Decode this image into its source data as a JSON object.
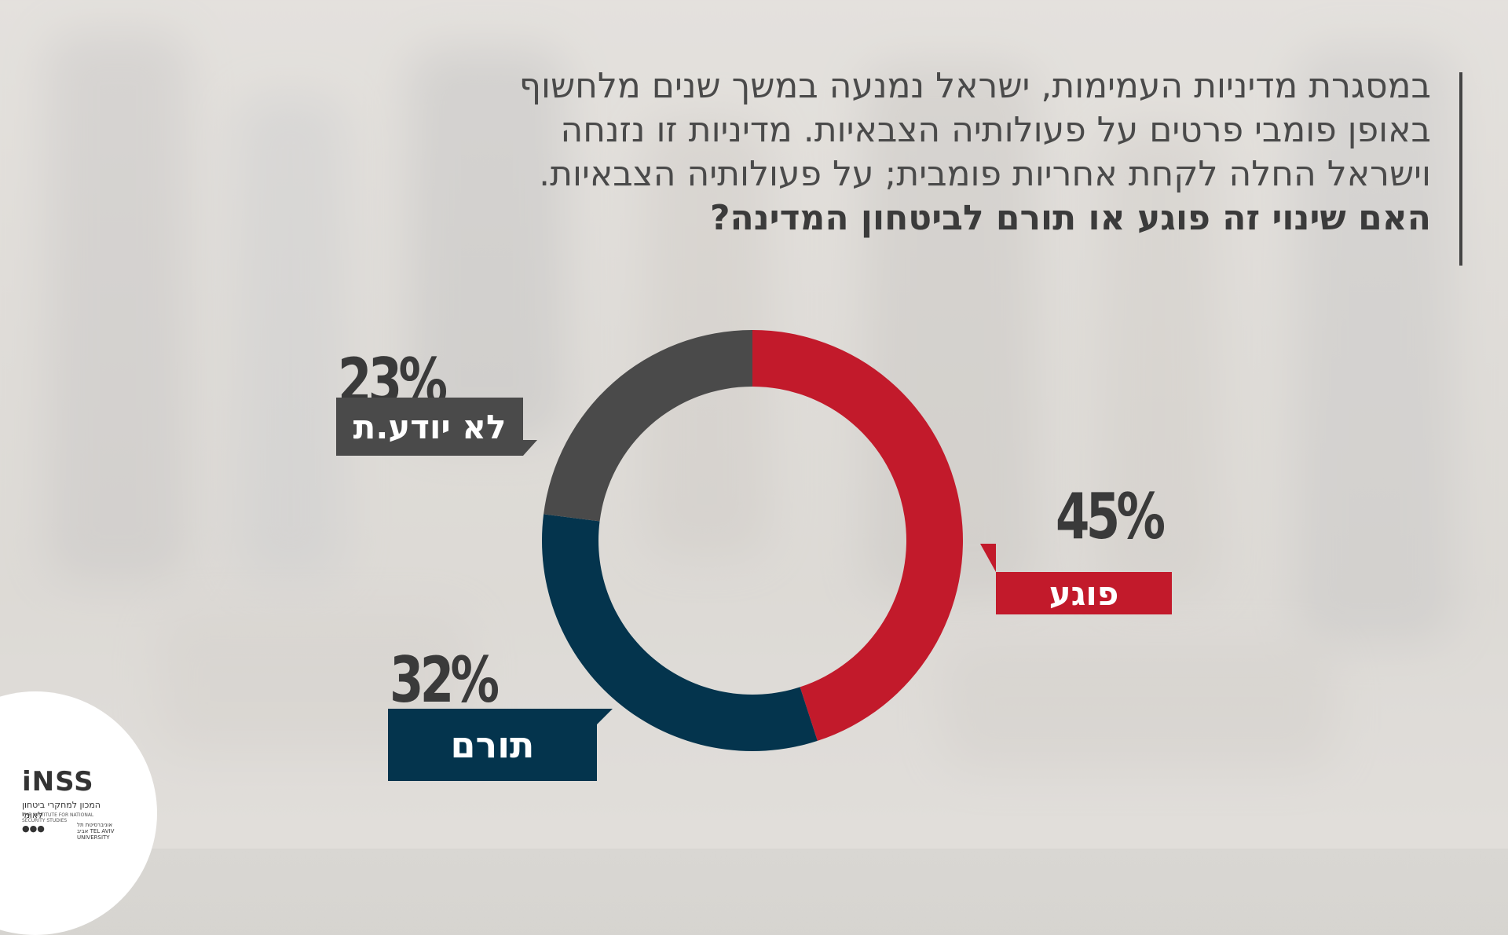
{
  "question": {
    "lines": [
      "במסגרת מדיניות העמימות, ישראל נמנעה במשך שנים מלחשוף",
      "באופן פומבי פרטים על פעולותיה הצבאיות. מדיניות זו נזנחה",
      "וישראל החלה לקחת אחריות פומבית; על פעולותיה הצבאיות."
    ],
    "bold": "האם שינוי זה פוגע או תורם לביטחון המדינה?"
  },
  "chart_data": {
    "type": "pie",
    "categories": [
      "פוגע",
      "תורם",
      "לא יודע.ת"
    ],
    "values": [
      45,
      32,
      23
    ],
    "labels": [
      "45%",
      "32%",
      "23%"
    ],
    "colors": [
      "#c21a2b",
      "#04344d",
      "#4a4a4a"
    ]
  },
  "logo": {
    "name": "iNSS",
    "subtitle_he": "המכון למחקרי ביטחון לאומי",
    "subtitle_en": "THE INSTITUTE FOR NATIONAL SECURITY STUDIES",
    "university": "אוניברסיטת תל אביב TEL AVIV UNIVERSITY"
  }
}
